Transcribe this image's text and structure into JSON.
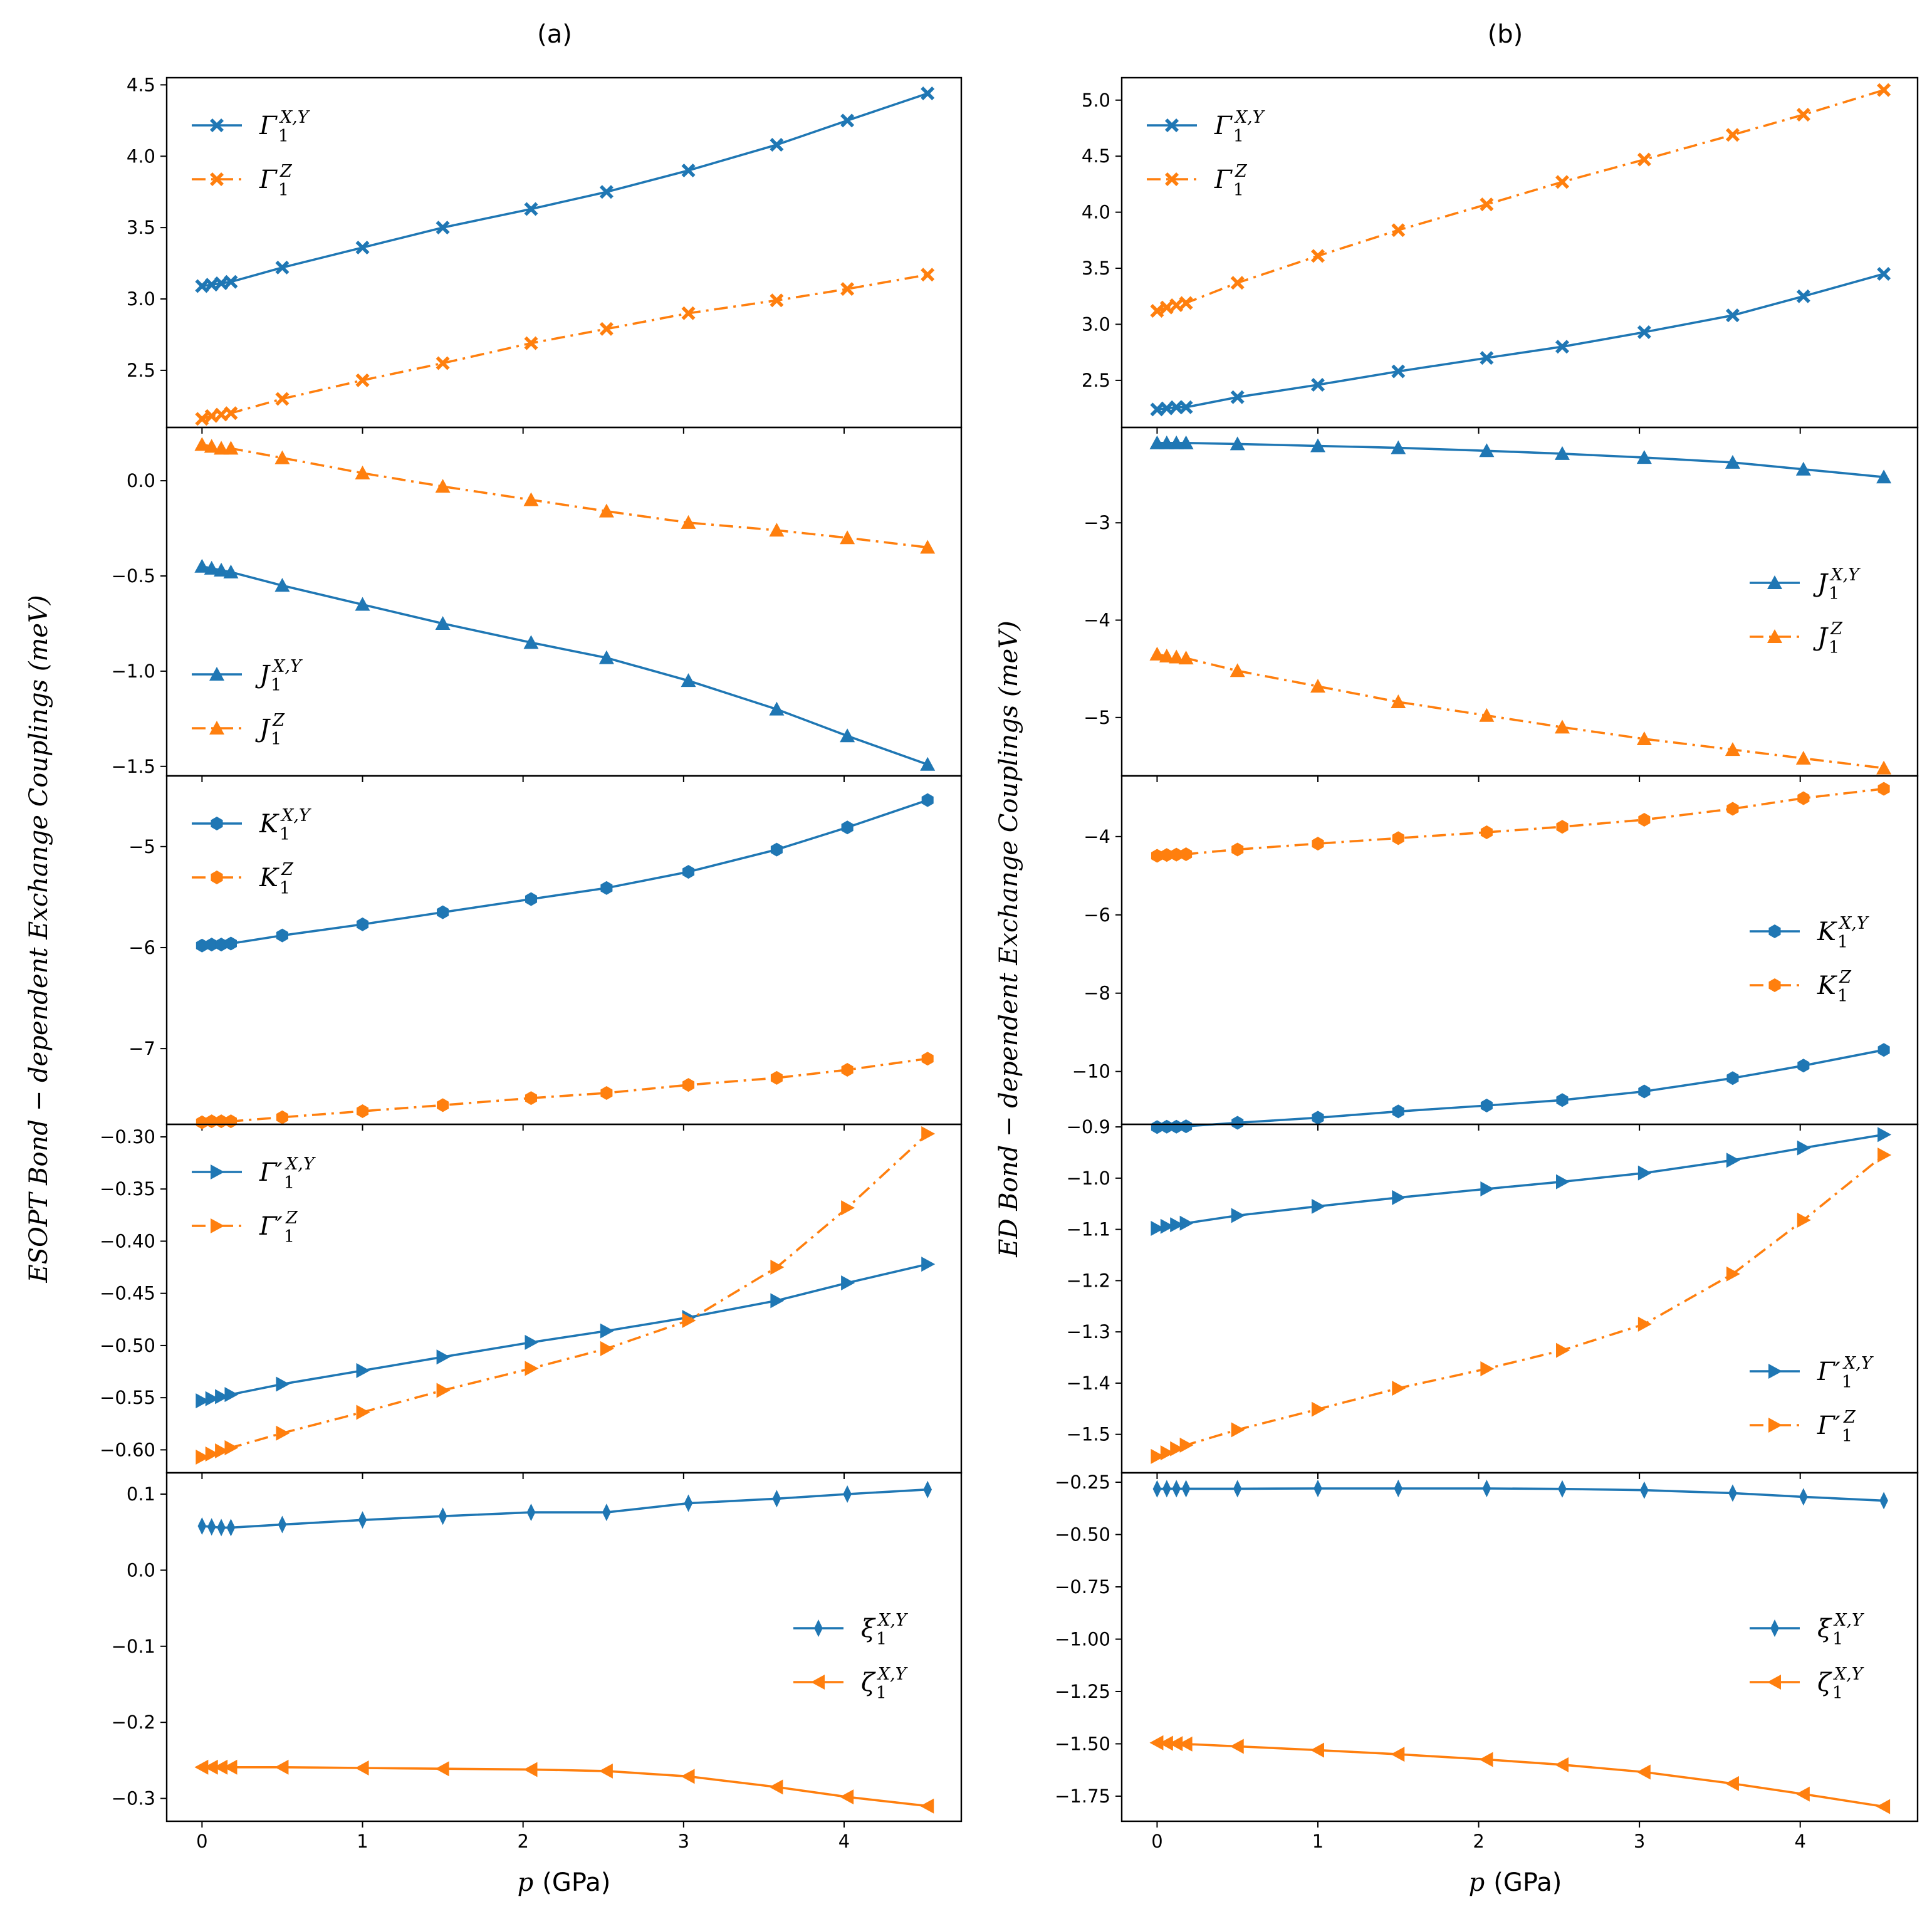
{
  "figure": {
    "panel_titles": [
      "(a)",
      "(b)"
    ],
    "ylabels": [
      "ESOPT Bond − dependent Exchange Couplings (meV)",
      "ED Bond − dependent Exchange Couplings (meV)"
    ],
    "xlabel_var": "p",
    "xlabel_unit": "(GPa)"
  },
  "colors": {
    "series1": "#1f77b4",
    "series2": "#ff7f0e",
    "axis": "#000000"
  },
  "chart_data": [
    {
      "type": "line",
      "column": "a",
      "row": 0,
      "title": "(a)",
      "x": [
        0,
        0.06,
        0.12,
        0.18,
        0.5,
        1.0,
        1.5,
        2.05,
        2.52,
        3.03,
        3.58,
        4.02,
        4.52
      ],
      "ylim": [
        2.1,
        4.55
      ],
      "yticks": [
        2.5,
        3.0,
        3.5,
        4.0,
        4.5
      ],
      "yticklabels": [
        "2.5",
        "3.0",
        "3.5",
        "4.0",
        "4.5"
      ],
      "xlim": [
        -0.22,
        4.73
      ],
      "xticks": [
        0,
        1,
        2,
        3,
        4
      ],
      "xticklabels": [
        "0",
        "1",
        "2",
        "3",
        "4"
      ],
      "legend": "upper-left",
      "series": [
        {
          "name": "Γ1^{X,Y}",
          "legend_main": "Γ",
          "legend_sub": "1",
          "legend_sup": "X,Y",
          "color_key": "series1",
          "dash": "solid",
          "marker": "X",
          "values": [
            3.09,
            3.1,
            3.11,
            3.12,
            3.22,
            3.36,
            3.5,
            3.63,
            3.75,
            3.9,
            4.08,
            4.25,
            4.44
          ]
        },
        {
          "name": "Γ1^{Z}",
          "legend_main": "Γ",
          "legend_sub": "1",
          "legend_sup": "Z",
          "color_key": "series2",
          "dash": "dashdot",
          "marker": "X",
          "values": [
            2.16,
            2.18,
            2.19,
            2.2,
            2.3,
            2.43,
            2.55,
            2.69,
            2.79,
            2.9,
            2.99,
            3.07,
            3.17
          ]
        }
      ]
    },
    {
      "type": "line",
      "column": "a",
      "row": 1,
      "x": [
        0,
        0.06,
        0.12,
        0.18,
        0.5,
        1.0,
        1.5,
        2.05,
        2.52,
        3.03,
        3.58,
        4.02,
        4.52
      ],
      "ylim": [
        -1.55,
        0.28
      ],
      "yticks": [
        -1.5,
        -1.0,
        -0.5,
        0.0
      ],
      "yticklabels": [
        "−1.5",
        "−1.0",
        "−0.5",
        "0.0"
      ],
      "xlim": [
        -0.22,
        4.73
      ],
      "xticks": [
        0,
        1,
        2,
        3,
        4
      ],
      "xticklabels": [
        "0",
        "1",
        "2",
        "3",
        "4"
      ],
      "legend": "lower-left",
      "series": [
        {
          "name": "J1^{X,Y}",
          "legend_main": "J",
          "legend_sub": "1",
          "legend_sup": "X,Y",
          "color_key": "series1",
          "dash": "solid",
          "marker": "^",
          "values": [
            -0.45,
            -0.46,
            -0.47,
            -0.48,
            -0.55,
            -0.65,
            -0.75,
            -0.85,
            -0.93,
            -1.05,
            -1.2,
            -1.34,
            -1.49
          ]
        },
        {
          "name": "J1^{Z}",
          "legend_main": "J",
          "legend_sub": "1",
          "legend_sup": "Z",
          "color_key": "series2",
          "dash": "dashdot",
          "marker": "^",
          "values": [
            0.19,
            0.18,
            0.17,
            0.17,
            0.12,
            0.04,
            -0.03,
            -0.1,
            -0.16,
            -0.22,
            -0.26,
            -0.3,
            -0.35
          ]
        }
      ]
    },
    {
      "type": "line",
      "column": "a",
      "row": 2,
      "x": [
        0,
        0.06,
        0.12,
        0.18,
        0.5,
        1.0,
        1.5,
        2.05,
        2.52,
        3.03,
        3.58,
        4.02,
        4.52
      ],
      "ylim": [
        -7.75,
        -4.3
      ],
      "yticks": [
        -7,
        -6,
        -5
      ],
      "yticklabels": [
        "−7",
        "−6",
        "−5"
      ],
      "xlim": [
        -0.22,
        4.73
      ],
      "xticks": [
        0,
        1,
        2,
        3,
        4
      ],
      "xticklabels": [
        "0",
        "1",
        "2",
        "3",
        "4"
      ],
      "legend": "upper-left",
      "series": [
        {
          "name": "K1^{X,Y}",
          "legend_main": "K",
          "legend_sub": "1",
          "legend_sup": "X,Y",
          "color_key": "series1",
          "dash": "solid",
          "marker": "h",
          "values": [
            -5.98,
            -5.97,
            -5.97,
            -5.96,
            -5.88,
            -5.77,
            -5.65,
            -5.52,
            -5.41,
            -5.25,
            -5.03,
            -4.81,
            -4.54
          ]
        },
        {
          "name": "K1^{Z}",
          "legend_main": "K",
          "legend_sub": "1",
          "legend_sup": "Z",
          "color_key": "series2",
          "dash": "dashdot",
          "marker": "h",
          "values": [
            -7.73,
            -7.72,
            -7.72,
            -7.72,
            -7.68,
            -7.62,
            -7.56,
            -7.49,
            -7.44,
            -7.36,
            -7.29,
            -7.21,
            -7.1
          ]
        }
      ]
    },
    {
      "type": "line",
      "column": "a",
      "row": 3,
      "x": [
        0,
        0.06,
        0.12,
        0.18,
        0.5,
        1.0,
        1.5,
        2.05,
        2.52,
        3.03,
        3.58,
        4.02,
        4.52
      ],
      "ylim": [
        -0.622,
        -0.288
      ],
      "yticks": [
        -0.6,
        -0.55,
        -0.5,
        -0.45,
        -0.4,
        -0.35,
        -0.3
      ],
      "yticklabels": [
        "−0.60",
        "−0.55",
        "−0.50",
        "−0.45",
        "−0.40",
        "−0.35",
        "−0.30"
      ],
      "xlim": [
        -0.22,
        4.73
      ],
      "xticks": [
        0,
        1,
        2,
        3,
        4
      ],
      "xticklabels": [
        "0",
        "1",
        "2",
        "3",
        "4"
      ],
      "legend": "upper-left",
      "series": [
        {
          "name": "Γ′1^{X,Y}",
          "legend_main": "Γ′",
          "legend_sub": "1",
          "legend_sup": "X,Y",
          "color_key": "series1",
          "dash": "solid",
          "marker": ">",
          "values": [
            -0.553,
            -0.551,
            -0.549,
            -0.547,
            -0.537,
            -0.524,
            -0.511,
            -0.497,
            -0.486,
            -0.473,
            -0.457,
            -0.44,
            -0.422
          ]
        },
        {
          "name": "Γ′1^{Z}",
          "legend_main": "Γ′",
          "legend_sub": "1",
          "legend_sup": "Z",
          "color_key": "series2",
          "dash": "dashdot",
          "marker": ">",
          "values": [
            -0.607,
            -0.604,
            -0.601,
            -0.598,
            -0.584,
            -0.564,
            -0.543,
            -0.522,
            -0.503,
            -0.476,
            -0.425,
            -0.368,
            -0.297
          ]
        }
      ]
    },
    {
      "type": "line",
      "column": "a",
      "row": 4,
      "x": [
        0,
        0.06,
        0.12,
        0.18,
        0.5,
        1.0,
        1.5,
        2.05,
        2.52,
        3.03,
        3.58,
        4.02,
        4.52
      ],
      "ylim": [
        -0.33,
        0.128
      ],
      "yticks": [
        -0.3,
        -0.2,
        -0.1,
        0.0,
        0.1
      ],
      "yticklabels": [
        "−0.3",
        "−0.2",
        "−0.1",
        "0.0",
        "0.1"
      ],
      "xlim": [
        -0.22,
        4.73
      ],
      "xticks": [
        0,
        1,
        2,
        3,
        4
      ],
      "xticklabels": [
        "0",
        "1",
        "2",
        "3",
        "4"
      ],
      "show_xticklabels": true,
      "legend": "center-right",
      "series": [
        {
          "name": "ξ1^{X,Y}",
          "legend_main": "ξ",
          "legend_sub": "1",
          "legend_sup": "X,Y",
          "color_key": "series1",
          "dash": "solid",
          "marker": "d",
          "values": [
            0.058,
            0.057,
            0.056,
            0.056,
            0.06,
            0.066,
            0.071,
            0.076,
            0.076,
            0.088,
            0.094,
            0.1,
            0.106
          ]
        },
        {
          "name": "ζ1^{X,Y}",
          "legend_main": "ζ",
          "legend_sub": "1",
          "legend_sup": "X,Y",
          "color_key": "series2",
          "dash": "solid",
          "marker": "<",
          "values": [
            -0.259,
            -0.259,
            -0.259,
            -0.259,
            -0.259,
            -0.26,
            -0.261,
            -0.262,
            -0.264,
            -0.271,
            -0.285,
            -0.298,
            -0.31
          ]
        }
      ]
    },
    {
      "type": "line",
      "column": "b",
      "row": 0,
      "title": "(b)",
      "x": [
        0,
        0.06,
        0.12,
        0.18,
        0.5,
        1.0,
        1.5,
        2.05,
        2.52,
        3.03,
        3.58,
        4.02,
        4.52
      ],
      "ylim": [
        2.08,
        5.2
      ],
      "yticks": [
        2.5,
        3.0,
        3.5,
        4.0,
        4.5,
        5.0
      ],
      "yticklabels": [
        "2.5",
        "3.0",
        "3.5",
        "4.0",
        "4.5",
        "5.0"
      ],
      "xlim": [
        -0.22,
        4.73
      ],
      "xticks": [
        0,
        1,
        2,
        3,
        4
      ],
      "xticklabels": [
        "0",
        "1",
        "2",
        "3",
        "4"
      ],
      "legend": "upper-left",
      "series": [
        {
          "name": "Γ1^{X,Y}",
          "legend_main": "Γ",
          "legend_sub": "1",
          "legend_sup": "X,Y",
          "color_key": "series1",
          "dash": "solid",
          "marker": "X",
          "values": [
            2.24,
            2.25,
            2.26,
            2.26,
            2.35,
            2.46,
            2.58,
            2.7,
            2.8,
            2.93,
            3.08,
            3.25,
            3.45
          ]
        },
        {
          "name": "Γ1^{Z}",
          "legend_main": "Γ",
          "legend_sub": "1",
          "legend_sup": "Z",
          "color_key": "series2",
          "dash": "dashdot",
          "marker": "X",
          "values": [
            3.12,
            3.15,
            3.17,
            3.19,
            3.37,
            3.61,
            3.84,
            4.07,
            4.27,
            4.47,
            4.69,
            4.87,
            5.09
          ]
        }
      ]
    },
    {
      "type": "line",
      "column": "b",
      "row": 1,
      "x": [
        0,
        0.06,
        0.12,
        0.18,
        0.5,
        1.0,
        1.5,
        2.05,
        2.52,
        3.03,
        3.58,
        4.02,
        4.52
      ],
      "ylim": [
        -5.6,
        -2.02
      ],
      "yticks": [
        -5,
        -4,
        -3
      ],
      "yticklabels": [
        "−5",
        "−4",
        "−3"
      ],
      "xlim": [
        -0.22,
        4.73
      ],
      "xticks": [
        0,
        1,
        2,
        3,
        4
      ],
      "xticklabels": [
        "0",
        "1",
        "2",
        "3",
        "4"
      ],
      "legend": "center-right",
      "series": [
        {
          "name": "J1^{X,Y}",
          "legend_main": "J",
          "legend_sub": "1",
          "legend_sup": "X,Y",
          "color_key": "series1",
          "dash": "solid",
          "marker": "^",
          "values": [
            -2.18,
            -2.18,
            -2.18,
            -2.18,
            -2.19,
            -2.21,
            -2.23,
            -2.26,
            -2.29,
            -2.33,
            -2.38,
            -2.45,
            -2.53
          ]
        },
        {
          "name": "J1^{Z}",
          "legend_main": "J",
          "legend_sub": "1",
          "legend_sup": "Z",
          "color_key": "series2",
          "dash": "dashdot",
          "marker": "^",
          "values": [
            -4.35,
            -4.37,
            -4.38,
            -4.39,
            -4.52,
            -4.68,
            -4.84,
            -4.98,
            -5.1,
            -5.22,
            -5.33,
            -5.42,
            -5.52
          ]
        }
      ]
    },
    {
      "type": "line",
      "column": "b",
      "row": 2,
      "x": [
        0,
        0.06,
        0.12,
        0.18,
        0.5,
        1.0,
        1.5,
        2.05,
        2.52,
        3.03,
        3.58,
        4.02,
        4.52
      ],
      "ylim": [
        -11.35,
        -2.45
      ],
      "yticks": [
        -10,
        -8,
        -6,
        -4
      ],
      "yticklabels": [
        "−10",
        "−8",
        "−6",
        "−4"
      ],
      "xlim": [
        -0.22,
        4.73
      ],
      "xticks": [
        0,
        1,
        2,
        3,
        4
      ],
      "xticklabels": [
        "0",
        "1",
        "2",
        "3",
        "4"
      ],
      "legend": "center-right",
      "series": [
        {
          "name": "K1^{X,Y}",
          "legend_main": "K",
          "legend_sub": "1",
          "legend_sup": "X,Y",
          "color_key": "series1",
          "dash": "solid",
          "marker": "h",
          "values": [
            -11.42,
            -11.41,
            -11.41,
            -11.4,
            -11.31,
            -11.18,
            -11.02,
            -10.87,
            -10.73,
            -10.51,
            -10.17,
            -9.85,
            -9.45
          ]
        },
        {
          "name": "K1^{Z}",
          "legend_main": "K",
          "legend_sub": "1",
          "legend_sup": "Z",
          "color_key": "series2",
          "dash": "dashdot",
          "marker": "h",
          "values": [
            -4.49,
            -4.47,
            -4.46,
            -4.45,
            -4.33,
            -4.18,
            -4.04,
            -3.89,
            -3.75,
            -3.57,
            -3.29,
            -3.02,
            -2.78
          ]
        }
      ]
    },
    {
      "type": "line",
      "column": "b",
      "row": 3,
      "x": [
        0,
        0.06,
        0.12,
        0.18,
        0.5,
        1.0,
        1.5,
        2.05,
        2.52,
        3.03,
        3.58,
        4.02,
        4.52
      ],
      "ylim": [
        -1.575,
        -0.895
      ],
      "yticks": [
        -1.5,
        -1.4,
        -1.3,
        -1.2,
        -1.1,
        -1.0,
        -0.9
      ],
      "yticklabels": [
        "−1.5",
        "−1.4",
        "−1.3",
        "−1.2",
        "−1.1",
        "−1.0",
        "−0.9"
      ],
      "xlim": [
        -0.22,
        4.73
      ],
      "xticks": [
        0,
        1,
        2,
        3,
        4
      ],
      "xticklabels": [
        "0",
        "1",
        "2",
        "3",
        "4"
      ],
      "legend": "lower-right",
      "series": [
        {
          "name": "Γ′1^{X,Y}",
          "legend_main": "Γ′",
          "legend_sub": "1",
          "legend_sup": "X,Y",
          "color_key": "series1",
          "dash": "solid",
          "marker": ">",
          "values": [
            -1.098,
            -1.094,
            -1.091,
            -1.088,
            -1.073,
            -1.055,
            -1.038,
            -1.021,
            -1.007,
            -0.99,
            -0.965,
            -0.941,
            -0.915
          ]
        },
        {
          "name": "Γ′1^{Z}",
          "legend_main": "Γ′",
          "legend_sub": "1",
          "legend_sup": "Z",
          "color_key": "series2",
          "dash": "dashdot",
          "marker": ">",
          "values": [
            -1.543,
            -1.536,
            -1.528,
            -1.521,
            -1.491,
            -1.451,
            -1.41,
            -1.372,
            -1.336,
            -1.285,
            -1.187,
            -1.082,
            -0.955
          ]
        }
      ]
    },
    {
      "type": "line",
      "column": "b",
      "row": 4,
      "x": [
        0,
        0.06,
        0.12,
        0.18,
        0.5,
        1.0,
        1.5,
        2.05,
        2.52,
        3.03,
        3.58,
        4.02,
        4.52
      ],
      "ylim": [
        -1.87,
        -0.205
      ],
      "yticks": [
        -1.75,
        -1.5,
        -1.25,
        -1.0,
        -0.75,
        -0.5,
        -0.25
      ],
      "yticklabels": [
        "−1.75",
        "−1.50",
        "−1.25",
        "−1.00",
        "−0.75",
        "−0.50",
        "−0.25"
      ],
      "xlim": [
        -0.22,
        4.73
      ],
      "xticks": [
        0,
        1,
        2,
        3,
        4
      ],
      "xticklabels": [
        "0",
        "1",
        "2",
        "3",
        "4"
      ],
      "show_xticklabels": true,
      "legend": "center-right",
      "series": [
        {
          "name": "ξ1^{X,Y}",
          "legend_main": "ξ",
          "legend_sub": "1",
          "legend_sup": "X,Y",
          "color_key": "series1",
          "dash": "solid",
          "marker": "d",
          "values": [
            -0.282,
            -0.281,
            -0.281,
            -0.281,
            -0.281,
            -0.28,
            -0.28,
            -0.28,
            -0.282,
            -0.288,
            -0.302,
            -0.32,
            -0.338
          ]
        },
        {
          "name": "ζ1^{X,Y}",
          "legend_main": "ζ",
          "legend_sub": "1",
          "legend_sup": "X,Y",
          "color_key": "series2",
          "dash": "solid",
          "marker": "<",
          "values": [
            -1.495,
            -1.497,
            -1.499,
            -1.501,
            -1.512,
            -1.53,
            -1.55,
            -1.575,
            -1.6,
            -1.635,
            -1.69,
            -1.74,
            -1.8
          ]
        }
      ]
    }
  ]
}
